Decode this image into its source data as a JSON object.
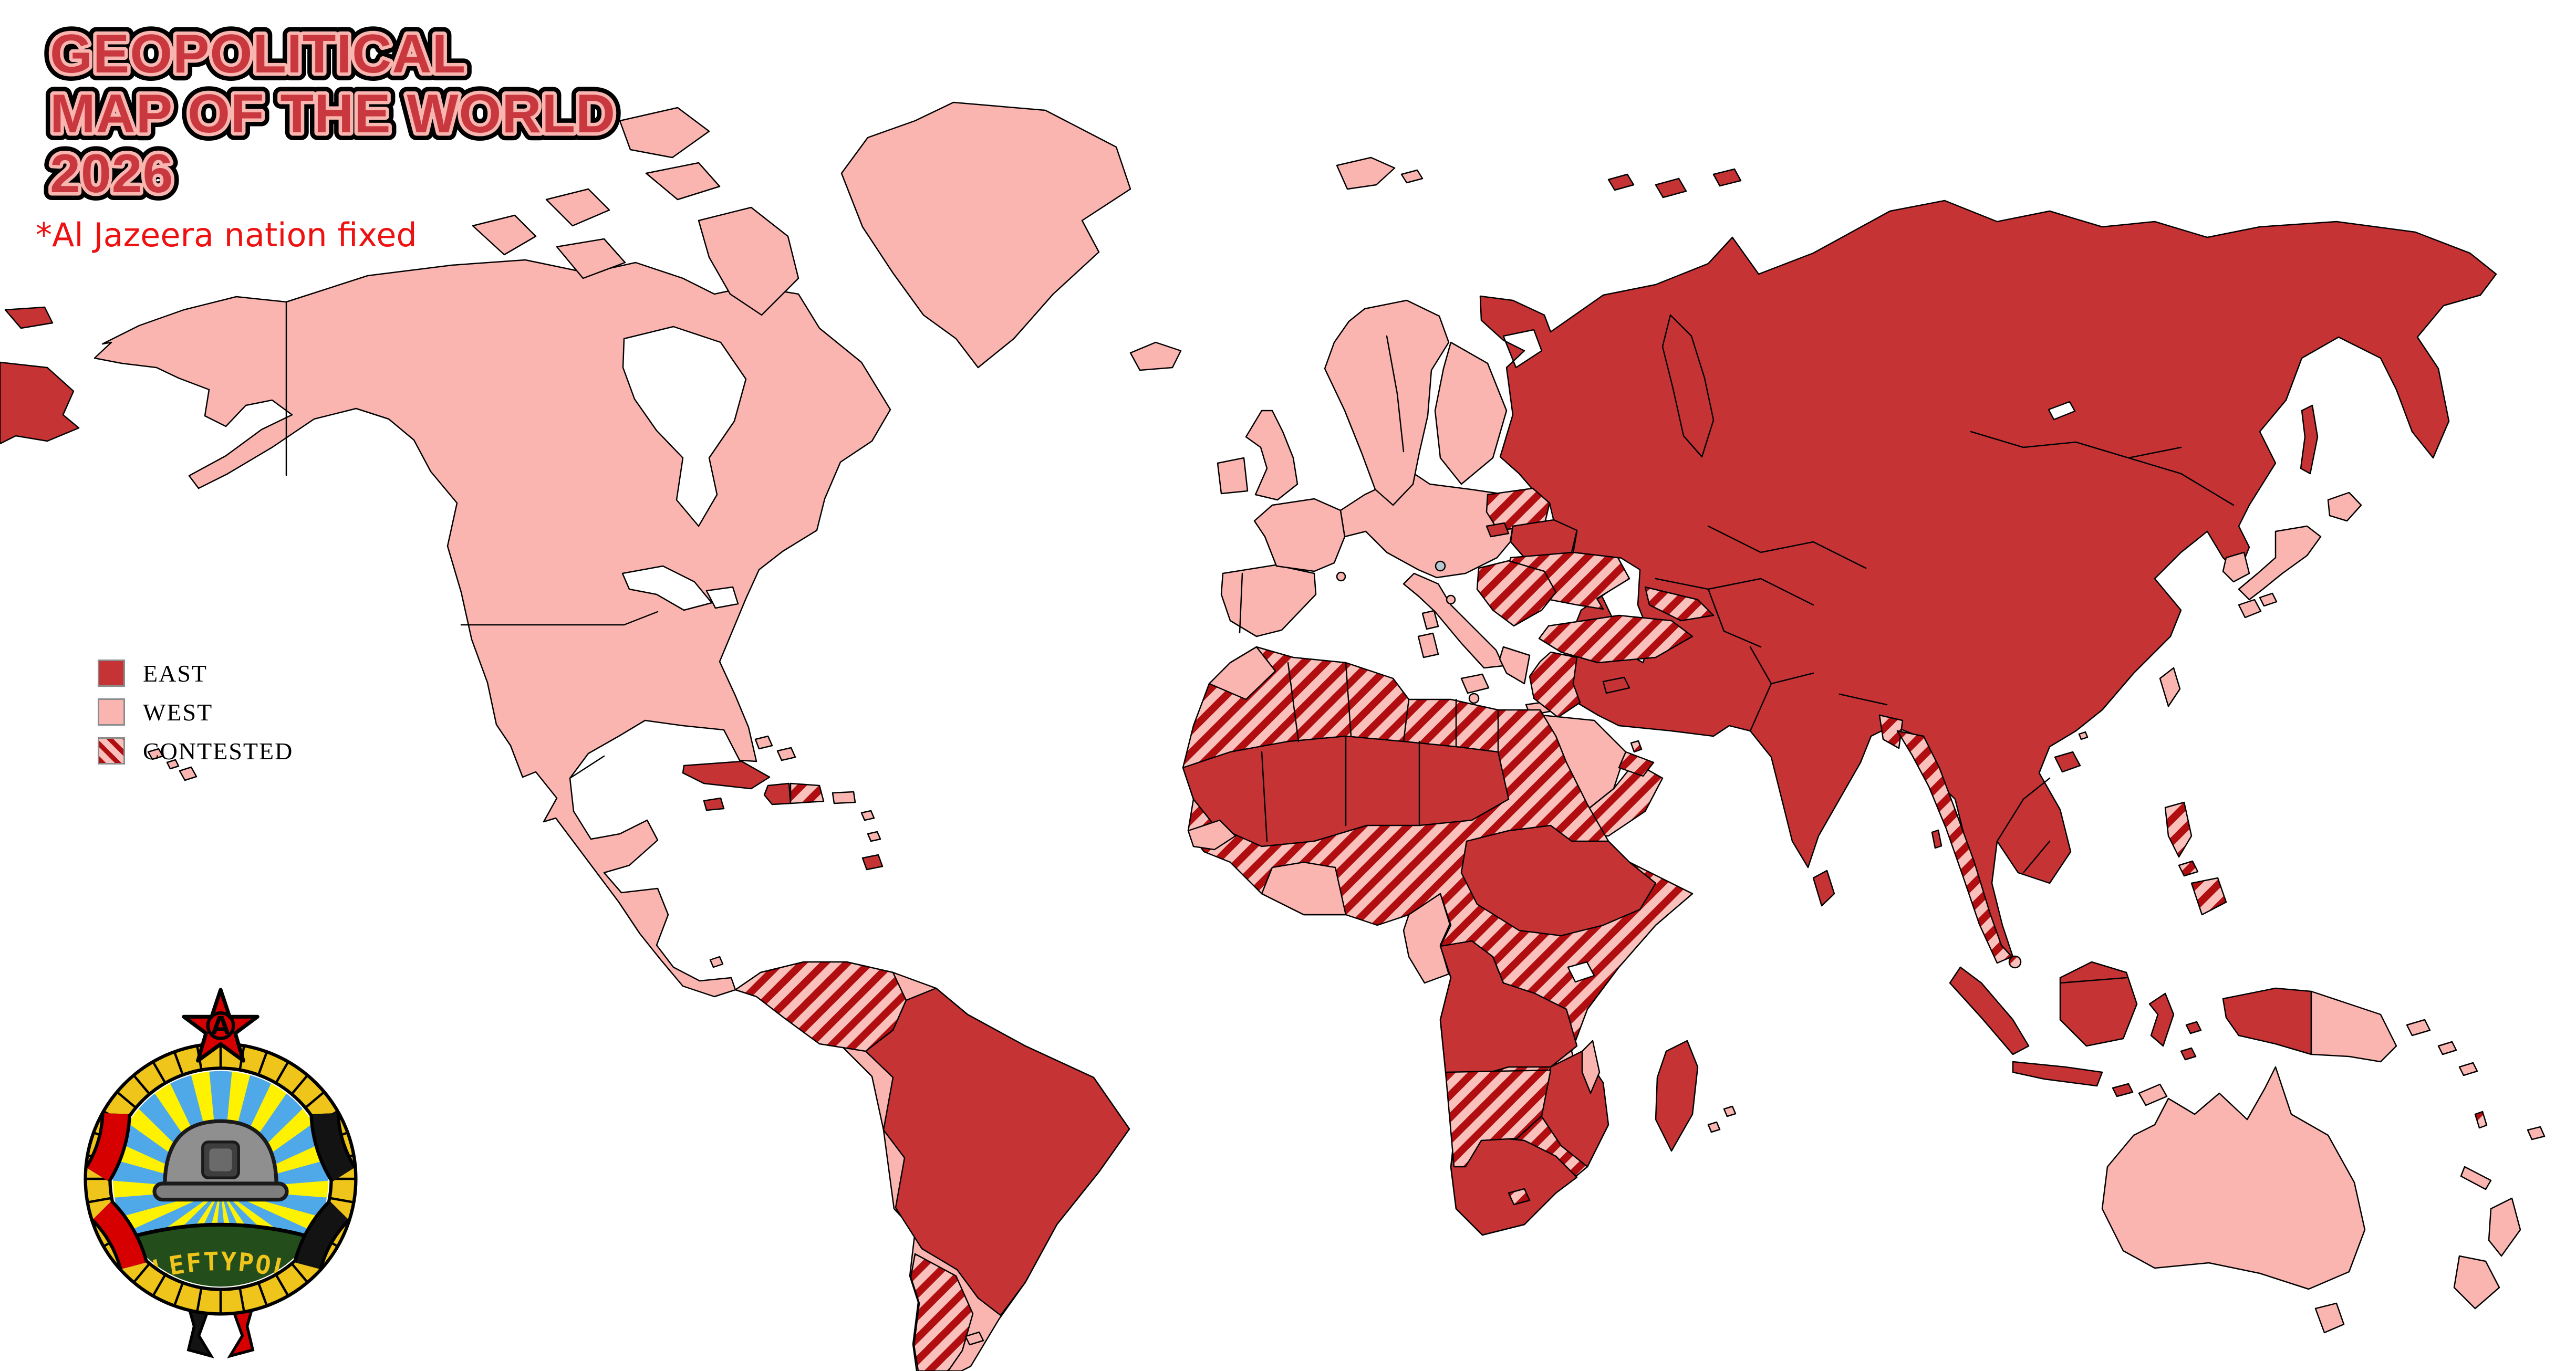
{
  "title": {
    "line1": "GEOPOLITICAL",
    "line2": "MAP OF THE WORLD",
    "line3": "2026"
  },
  "subtitle": "*Al Jazeera nation fixed",
  "legend": {
    "items": [
      {
        "id": "east",
        "label": "EAST"
      },
      {
        "id": "west",
        "label": "WEST"
      },
      {
        "id": "contested",
        "label": "CONTESTED"
      }
    ]
  },
  "logo": {
    "banner_text": "/LEFTYPOL/",
    "anarchy_symbol": "A"
  },
  "colors": {
    "east": "#C63334",
    "west": "#FAB5B0",
    "contested_stripe": "#B00E10",
    "contested_bg": "#FAC0BB",
    "border": "#000000",
    "background": "#FFFFFF",
    "title_fill": "#C9383E",
    "title_inner_outline": "#F9B5B0",
    "title_outline": "#000000",
    "subtitle_red": "#EE1111",
    "legend_swatch_border": "#8C8C8C",
    "microstate": "#B9C8CE",
    "logo_gold": "#EFC51C",
    "logo_gold_dark": "#B98A00",
    "logo_star_red": "#D60000",
    "logo_ray_blue": "#4FA8E8",
    "logo_ray_yellow": "#FFF200",
    "logo_green": "#234D1B",
    "logo_helmet": "#8F8F8F",
    "logo_helmet_dark": "#3E3E3E",
    "logo_helmet_mid": "#6A6A6A",
    "logo_ribbon_red": "#D60000",
    "logo_ribbon_black": "#131313",
    "logo_banner_text": "#EFC51C"
  },
  "map": {
    "regions": [
      {
        "name": "chukotka-wrap",
        "alignment": "east"
      },
      {
        "name": "wrangel-island",
        "alignment": "east"
      },
      {
        "name": "north-america",
        "alignment": "west"
      },
      {
        "name": "canada-arctic",
        "alignment": "west"
      },
      {
        "name": "greenland",
        "alignment": "west"
      },
      {
        "name": "iceland",
        "alignment": "west"
      },
      {
        "name": "hawaii",
        "alignment": "west"
      },
      {
        "name": "bahamas",
        "alignment": "west"
      },
      {
        "name": "cuba",
        "alignment": "east"
      },
      {
        "name": "jamaica",
        "alignment": "east"
      },
      {
        "name": "haiti",
        "alignment": "east"
      },
      {
        "name": "dominican-republic",
        "alignment": "contested"
      },
      {
        "name": "puerto-rico",
        "alignment": "west"
      },
      {
        "name": "lesser-antilles",
        "alignment": "west"
      },
      {
        "name": "trinidad",
        "alignment": "east"
      },
      {
        "name": "galapagos",
        "alignment": "west"
      },
      {
        "name": "south-america",
        "alignment": "west"
      },
      {
        "name": "colombia-venezuela",
        "alignment": "contested"
      },
      {
        "name": "brazil",
        "alignment": "east"
      },
      {
        "name": "argentina",
        "alignment": "contested"
      },
      {
        "name": "falklands",
        "alignment": "west"
      },
      {
        "name": "iberia",
        "alignment": "west"
      },
      {
        "name": "france",
        "alignment": "west"
      },
      {
        "name": "uk",
        "alignment": "west"
      },
      {
        "name": "ireland",
        "alignment": "west"
      },
      {
        "name": "central-europe",
        "alignment": "west"
      },
      {
        "name": "italy",
        "alignment": "west"
      },
      {
        "name": "mediterranean-islands",
        "alignment": "west"
      },
      {
        "name": "greece",
        "alignment": "west"
      },
      {
        "name": "scandinavia",
        "alignment": "west"
      },
      {
        "name": "finland",
        "alignment": "west"
      },
      {
        "name": "svalbard",
        "alignment": "west"
      },
      {
        "name": "baltics",
        "alignment": "contested"
      },
      {
        "name": "kaliningrad",
        "alignment": "east"
      },
      {
        "name": "belarus",
        "alignment": "east"
      },
      {
        "name": "ukraine",
        "alignment": "contested"
      },
      {
        "name": "balkans",
        "alignment": "contested"
      },
      {
        "name": "russia-asia",
        "alignment": "east"
      },
      {
        "name": "novaya-zemlya",
        "alignment": "east"
      },
      {
        "name": "franz-josef-land",
        "alignment": "east"
      },
      {
        "name": "turkey",
        "alignment": "contested"
      },
      {
        "name": "cyprus",
        "alignment": "east"
      },
      {
        "name": "levant-iraq",
        "alignment": "contested"
      },
      {
        "name": "caucasus",
        "alignment": "contested"
      },
      {
        "name": "arabia",
        "alignment": "west"
      },
      {
        "name": "yemen-oman",
        "alignment": "contested"
      },
      {
        "name": "gulf-states",
        "alignment": "contested"
      },
      {
        "name": "bangladesh",
        "alignment": "contested"
      },
      {
        "name": "myanmar-thailand",
        "alignment": "contested"
      },
      {
        "name": "sakhalin",
        "alignment": "east"
      },
      {
        "name": "japan",
        "alignment": "west"
      },
      {
        "name": "south-korea",
        "alignment": "west"
      },
      {
        "name": "taiwan",
        "alignment": "west"
      },
      {
        "name": "hainan",
        "alignment": "east"
      },
      {
        "name": "hong-kong",
        "alignment": "west"
      },
      {
        "name": "sri-lanka",
        "alignment": "east"
      },
      {
        "name": "andaman-islands",
        "alignment": "east"
      },
      {
        "name": "philippines",
        "alignment": "contested"
      },
      {
        "name": "sumatra",
        "alignment": "east"
      },
      {
        "name": "java",
        "alignment": "east"
      },
      {
        "name": "borneo",
        "alignment": "east"
      },
      {
        "name": "sulawesi",
        "alignment": "east"
      },
      {
        "name": "moluccas",
        "alignment": "east"
      },
      {
        "name": "lesser-sunda",
        "alignment": "east"
      },
      {
        "name": "timor",
        "alignment": "west"
      },
      {
        "name": "new-guinea-west",
        "alignment": "east"
      },
      {
        "name": "papua-new-guinea",
        "alignment": "west"
      },
      {
        "name": "solomon-islands",
        "alignment": "west"
      },
      {
        "name": "vanuatu",
        "alignment": "contested"
      },
      {
        "name": "new-caledonia",
        "alignment": "west"
      },
      {
        "name": "fiji",
        "alignment": "west"
      },
      {
        "name": "australia",
        "alignment": "west"
      },
      {
        "name": "tasmania",
        "alignment": "west"
      },
      {
        "name": "new-zealand",
        "alignment": "west"
      },
      {
        "name": "africa",
        "alignment": "contested"
      },
      {
        "name": "morocco",
        "alignment": "west"
      },
      {
        "name": "sahel",
        "alignment": "east"
      },
      {
        "name": "senegal",
        "alignment": "west"
      },
      {
        "name": "ghana-ivory-coast",
        "alignment": "west"
      },
      {
        "name": "cameroon-gabon",
        "alignment": "west"
      },
      {
        "name": "central-east-africa",
        "alignment": "east"
      },
      {
        "name": "congo-angola-zambia",
        "alignment": "east"
      },
      {
        "name": "zimbabwe-mozambique",
        "alignment": "east"
      },
      {
        "name": "south-africa",
        "alignment": "east"
      },
      {
        "name": "namibia-botswana",
        "alignment": "contested"
      },
      {
        "name": "lesotho",
        "alignment": "contested"
      },
      {
        "name": "malawi",
        "alignment": "west"
      },
      {
        "name": "madagascar",
        "alignment": "east"
      },
      {
        "name": "indian-ocean-islands",
        "alignment": "west"
      },
      {
        "name": "liechtenstein",
        "alignment": "microstate"
      },
      {
        "name": "monaco",
        "alignment": "west"
      },
      {
        "name": "san-marino",
        "alignment": "west"
      },
      {
        "name": "malta",
        "alignment": "west"
      },
      {
        "name": "singapore",
        "alignment": "contested"
      }
    ]
  }
}
